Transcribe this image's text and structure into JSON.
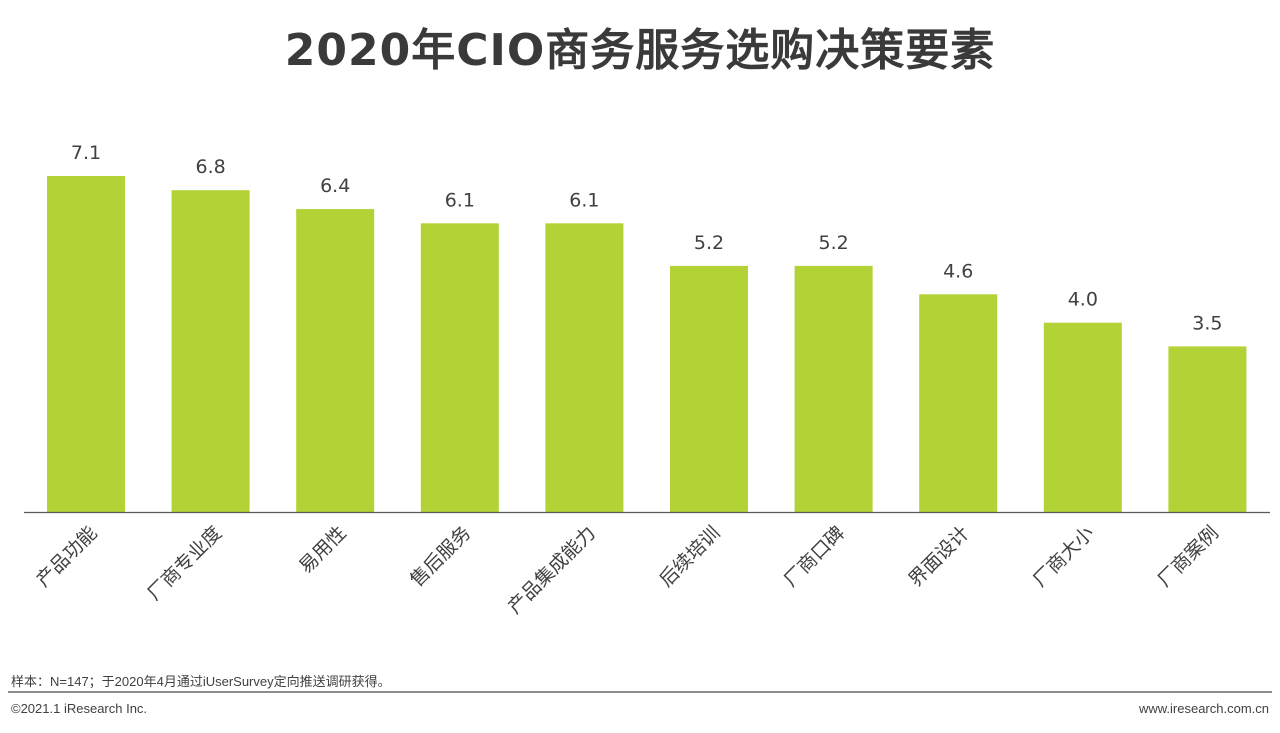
{
  "footer": {
    "note": "样本：N=147；于2020年4月通过iUserSurvey定向推送调研获得。",
    "copyright": "©2021.1 iResearch Inc.",
    "website": "www.iresearch.com.cn"
  },
  "chart_data": {
    "type": "bar",
    "title": "2020年CIO商务服务选购决策要素",
    "xlabel": "",
    "ylabel": "",
    "categories": [
      "产品功能",
      "厂商专业度",
      "易用性",
      "售后服务",
      "产品集成能力",
      "后续培训",
      "厂商口碑",
      "界面设计",
      "厂商大小",
      "厂商案例"
    ],
    "values": [
      7.1,
      6.8,
      6.4,
      6.1,
      6.1,
      5.2,
      5.2,
      4.6,
      4.0,
      3.5
    ],
    "value_labels": [
      "7.1",
      "6.8",
      "6.4",
      "6.1",
      "6.1",
      "5.2",
      "5.2",
      "4.6",
      "4.0",
      "3.5"
    ],
    "ylim": [
      0,
      7.1
    ],
    "grid": false,
    "legend": "none",
    "bar_color": "#b2d235",
    "axis_color": "#595959"
  }
}
